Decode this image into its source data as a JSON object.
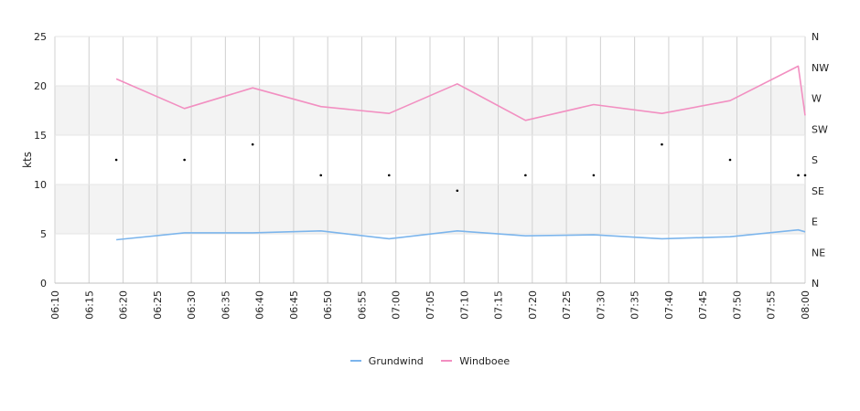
{
  "chart_data": {
    "type": "line",
    "ylabel": "kts",
    "ylim": [
      0,
      25
    ],
    "yticks": [
      "0",
      "5",
      "10",
      "15",
      "20",
      "25"
    ],
    "xticks": [
      "06:10",
      "06:15",
      "06:20",
      "06:25",
      "06:30",
      "06:35",
      "06:40",
      "06:45",
      "06:50",
      "06:55",
      "07:00",
      "07:05",
      "07:10",
      "07:15",
      "07:20",
      "07:25",
      "07:30",
      "07:35",
      "07:40",
      "07:45",
      "07:50",
      "07:55",
      "08:00"
    ],
    "xlim": [
      "06:10",
      "08:00"
    ],
    "direction_axis": [
      "N",
      "NE",
      "E",
      "SE",
      "S",
      "SW",
      "W",
      "NW",
      "N"
    ],
    "grid_bands": true,
    "legend_placement": "bottom-center",
    "series": [
      {
        "name": "Grundwind",
        "color": "#7cb5ec",
        "x": [
          "06:19",
          "06:29",
          "06:39",
          "06:49",
          "06:59",
          "07:09",
          "07:19",
          "07:29",
          "07:39",
          "07:49",
          "07:59",
          "08:00"
        ],
        "values": [
          4.4,
          5.1,
          5.1,
          5.3,
          4.5,
          5.3,
          4.8,
          4.9,
          4.5,
          4.7,
          5.4,
          5.2
        ]
      },
      {
        "name": "Windboee",
        "color": "#f28fc1",
        "x": [
          "06:19",
          "06:29",
          "06:39",
          "06:49",
          "06:59",
          "07:09",
          "07:19",
          "07:29",
          "07:39",
          "07:49",
          "07:59",
          "08:00"
        ],
        "values": [
          20.7,
          17.7,
          19.8,
          17.9,
          17.2,
          20.2,
          16.5,
          18.1,
          17.2,
          18.5,
          22.0,
          17.0
        ]
      }
    ],
    "direction_points": {
      "x": [
        "06:19",
        "06:29",
        "06:39",
        "06:49",
        "06:59",
        "07:09",
        "07:19",
        "07:29",
        "07:39",
        "07:49",
        "07:59",
        "08:00"
      ],
      "values": [
        "S",
        "S",
        "SSW",
        "SSE",
        "SSE",
        "SE",
        "SSE",
        "SSE",
        "SSW",
        "S",
        "SSE",
        "SSE"
      ],
      "color": "#000000"
    }
  }
}
